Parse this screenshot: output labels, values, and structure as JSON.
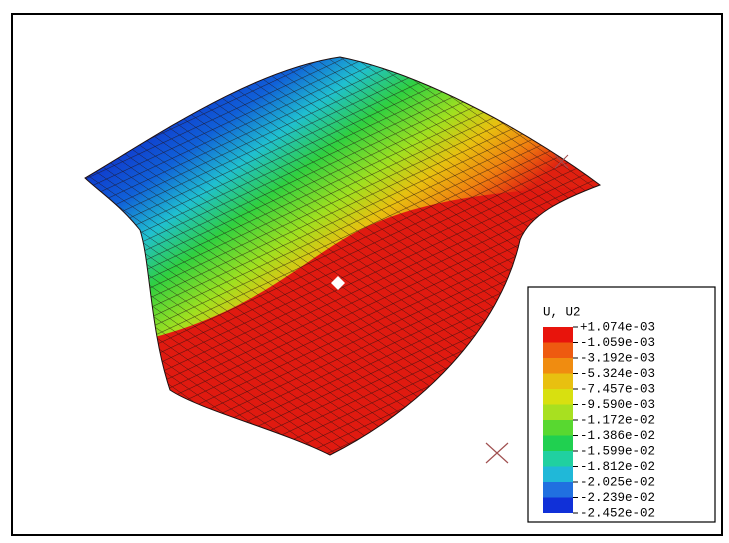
{
  "legend": {
    "title": "U, U2",
    "labels": [
      "+1.074e-03",
      "-1.059e-03",
      "-3.192e-03",
      "-5.324e-03",
      "-7.457e-03",
      "-9.590e-03",
      "-1.172e-02",
      "-1.386e-02",
      "-1.599e-02",
      "-1.812e-02",
      "-2.025e-02",
      "-2.239e-02",
      "-2.452e-02"
    ],
    "colors": [
      "#e8140c",
      "#ee5a10",
      "#f08c10",
      "#e8c010",
      "#d8e010",
      "#a8e020",
      "#58d830",
      "#20d050",
      "#20d0a0",
      "#20b8d8",
      "#2070e0",
      "#1030d8"
    ]
  }
}
